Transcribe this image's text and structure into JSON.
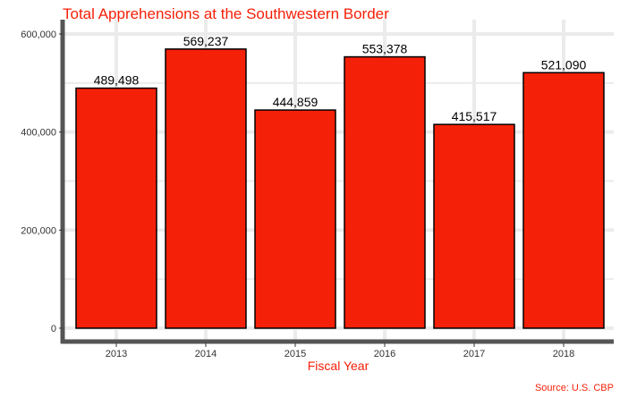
{
  "chart_data": {
    "type": "bar",
    "title": "Total Apprehensions at the Southwestern Border",
    "xlabel": "Fiscal Year",
    "ylabel": "",
    "categories": [
      "2013",
      "2014",
      "2015",
      "2016",
      "2017",
      "2018"
    ],
    "values": [
      489498,
      569237,
      444859,
      553378,
      415517,
      521090
    ],
    "data_labels": [
      "489,498",
      "569,237",
      "444,859",
      "553,378",
      "415,517",
      "521,090"
    ],
    "ylim": [
      0,
      600000
    ],
    "y_ticks": [
      0,
      200000,
      400000,
      600000
    ],
    "y_tick_labels": [
      "0",
      "200,000",
      "400,000",
      "600,000"
    ],
    "grid": true,
    "legend": "none",
    "source": "Source: U.S. CBP",
    "colors": {
      "bar_fill": "#f52008",
      "bar_stroke": "#000000",
      "title": "#f52008",
      "axis_title": "#f52008",
      "source": "#f52008",
      "grid": "#ebebeb",
      "axis_line": "#555555"
    }
  }
}
